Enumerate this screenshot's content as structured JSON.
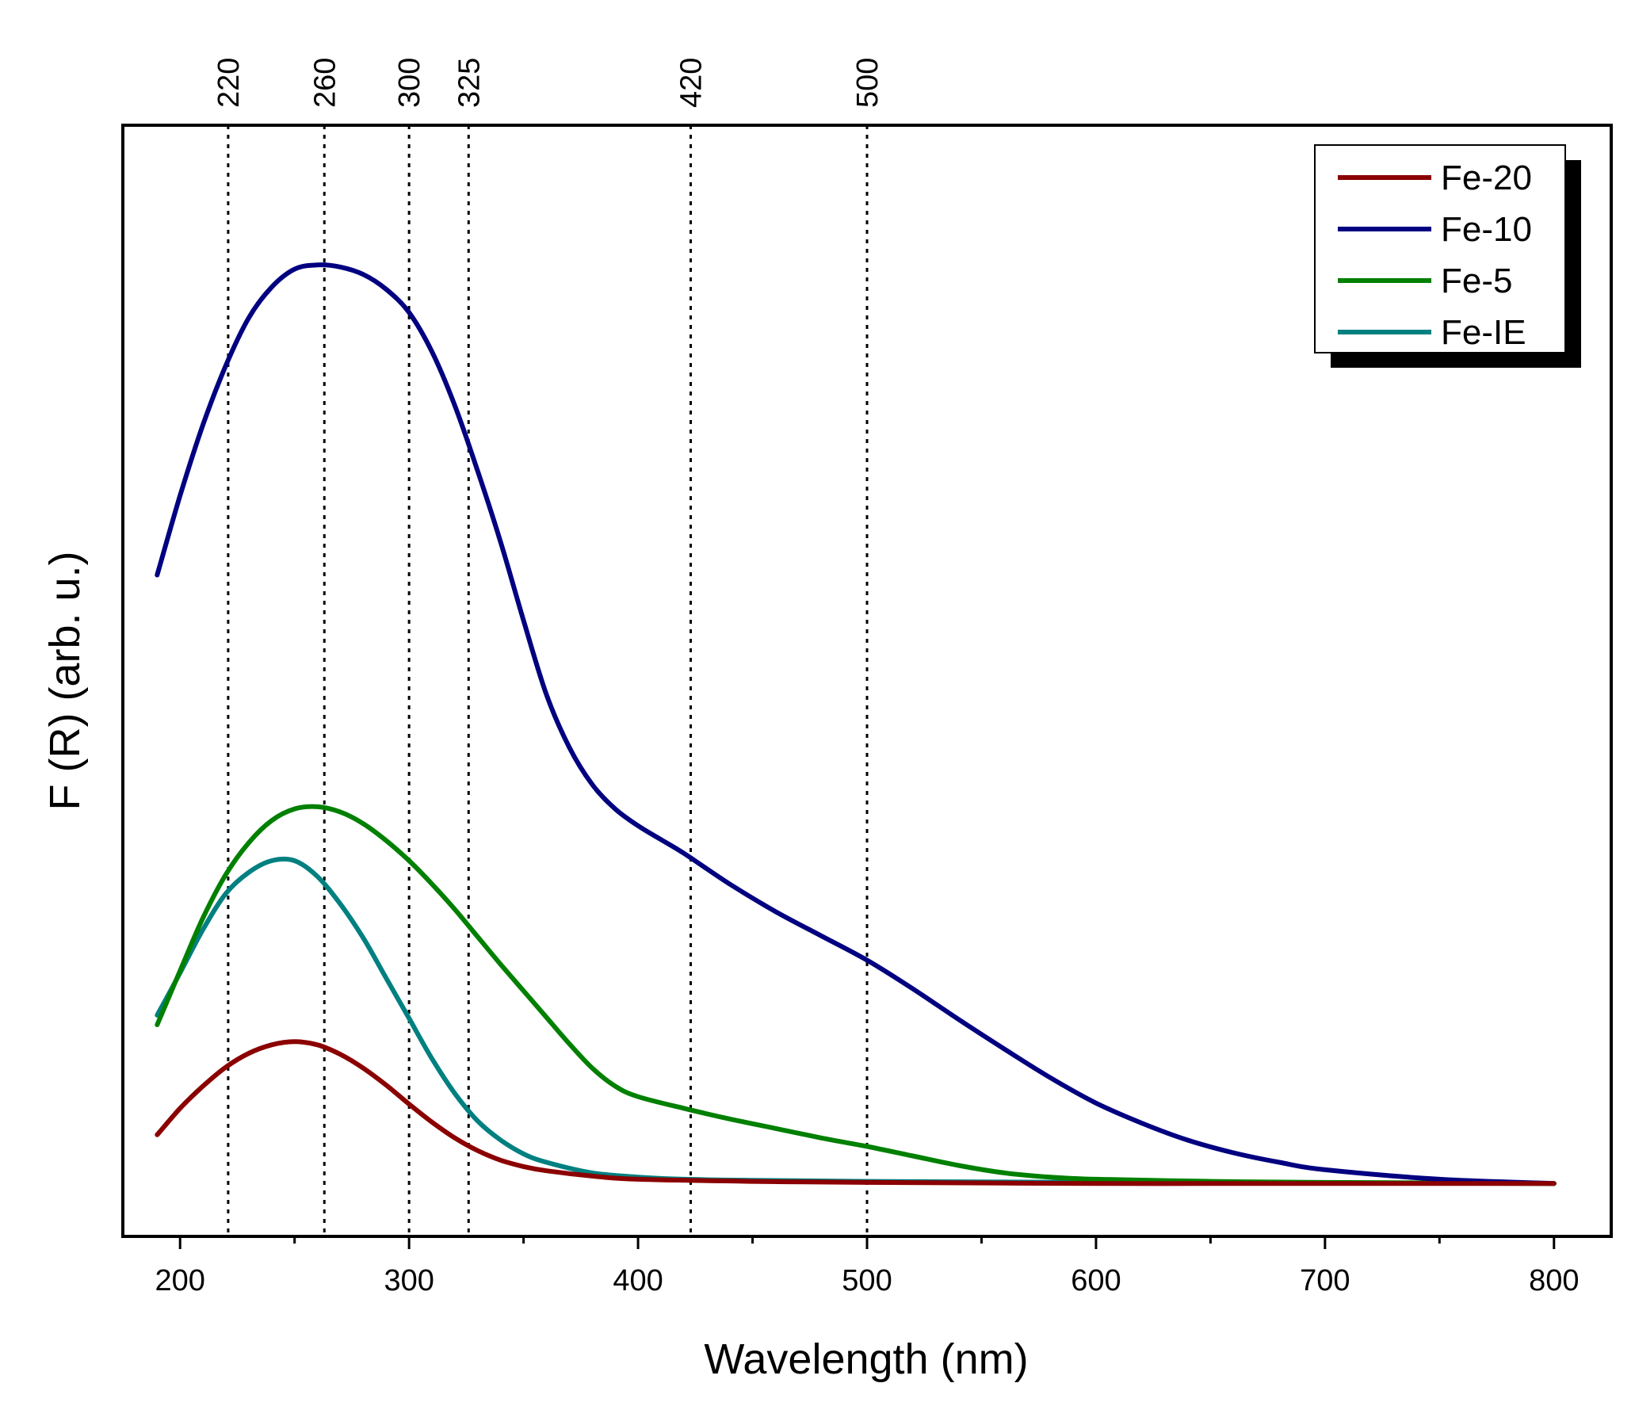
{
  "chart_data": {
    "type": "line",
    "xlabel": "Wavelength (nm)",
    "ylabel": "F (R) (arb. u.)",
    "xlim": [
      175,
      825
    ],
    "ylim": [
      -0.05,
      1.0
    ],
    "x_ticks": [
      "200",
      "300",
      "400",
      "500",
      "600",
      "700",
      "800"
    ],
    "x_tick_values": [
      200,
      300,
      400,
      500,
      600,
      700,
      800
    ],
    "x_minor_ticks": [
      250,
      350,
      450,
      550,
      650,
      750
    ],
    "reference_lines": [
      {
        "label": "220",
        "x": 221
      },
      {
        "label": "260",
        "x": 263
      },
      {
        "label": "300",
        "x": 300
      },
      {
        "label": "325",
        "x": 326
      },
      {
        "label": "420",
        "x": 423
      },
      {
        "label": "500",
        "x": 500
      }
    ],
    "legend_position": "top-right",
    "series": [
      {
        "name": "Fe-20",
        "color": "#8b0000",
        "x": [
          190,
          200,
          210,
          220,
          230,
          240,
          250,
          260,
          270,
          280,
          290,
          300,
          310,
          320,
          330,
          340,
          350,
          360,
          380,
          400,
          450,
          500,
          600,
          700,
          800
        ],
        "y": [
          0.046,
          0.071,
          0.092,
          0.11,
          0.123,
          0.131,
          0.134,
          0.131,
          0.122,
          0.109,
          0.093,
          0.075,
          0.058,
          0.043,
          0.031,
          0.022,
          0.016,
          0.012,
          0.007,
          0.004,
          0.002,
          0.001,
          0.0,
          0.0,
          0.0
        ]
      },
      {
        "name": "Fe-10",
        "color": "#000080",
        "x": [
          190,
          200,
          210,
          220,
          230,
          240,
          250,
          260,
          270,
          280,
          290,
          300,
          310,
          320,
          330,
          340,
          350,
          360,
          370,
          380,
          390,
          400,
          410,
          420,
          440,
          460,
          480,
          500,
          520,
          540,
          560,
          580,
          600,
          620,
          640,
          660,
          680,
          700,
          750,
          800
        ],
        "y": [
          0.575,
          0.65,
          0.717,
          0.773,
          0.818,
          0.847,
          0.864,
          0.868,
          0.866,
          0.859,
          0.845,
          0.823,
          0.786,
          0.735,
          0.673,
          0.606,
          0.532,
          0.462,
          0.412,
          0.377,
          0.354,
          0.338,
          0.325,
          0.312,
          0.283,
          0.257,
          0.234,
          0.211,
          0.184,
          0.155,
          0.127,
          0.1,
          0.076,
          0.057,
          0.041,
          0.029,
          0.02,
          0.013,
          0.004,
          0.0
        ]
      },
      {
        "name": "Fe-5",
        "color": "#008000",
        "x": [
          190,
          200,
          210,
          220,
          230,
          240,
          250,
          260,
          270,
          280,
          290,
          300,
          310,
          320,
          330,
          340,
          350,
          360,
          370,
          380,
          390,
          400,
          420,
          440,
          460,
          480,
          500,
          520,
          540,
          560,
          580,
          600,
          650,
          700,
          800
        ],
        "y": [
          0.15,
          0.201,
          0.251,
          0.292,
          0.322,
          0.343,
          0.354,
          0.356,
          0.351,
          0.34,
          0.324,
          0.305,
          0.283,
          0.259,
          0.233,
          0.207,
          0.182,
          0.157,
          0.132,
          0.109,
          0.092,
          0.082,
          0.071,
          0.061,
          0.052,
          0.043,
          0.035,
          0.026,
          0.017,
          0.01,
          0.006,
          0.004,
          0.002,
          0.001,
          0.0
        ]
      },
      {
        "name": "Fe-IE",
        "color": "#008080",
        "x": [
          190,
          200,
          210,
          220,
          230,
          240,
          250,
          260,
          270,
          280,
          290,
          300,
          310,
          320,
          330,
          340,
          350,
          360,
          380,
          400,
          420,
          450,
          500,
          600,
          800
        ],
        "y": [
          0.159,
          0.199,
          0.24,
          0.274,
          0.294,
          0.305,
          0.305,
          0.29,
          0.264,
          0.232,
          0.194,
          0.156,
          0.118,
          0.085,
          0.059,
          0.041,
          0.028,
          0.02,
          0.01,
          0.006,
          0.004,
          0.003,
          0.002,
          0.001,
          0.0
        ]
      }
    ]
  }
}
